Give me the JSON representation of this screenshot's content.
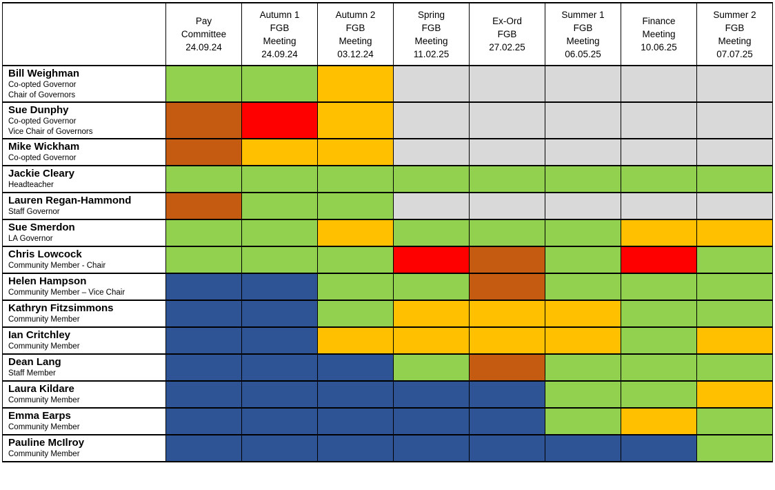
{
  "table": {
    "corner_header": "",
    "meeting_columns": [
      {
        "lines": [
          "Pay",
          "Committee",
          "24.09.24"
        ]
      },
      {
        "lines": [
          "Autumn 1",
          "FGB",
          "Meeting",
          "24.09.24"
        ]
      },
      {
        "lines": [
          "Autumn 2",
          "FGB",
          "Meeting",
          "03.12.24"
        ]
      },
      {
        "lines": [
          "Spring",
          "FGB",
          "Meeting",
          "11.02.25"
        ]
      },
      {
        "lines": [
          "Ex-Ord",
          "FGB",
          "27.02.25"
        ]
      },
      {
        "lines": [
          "Summer 1",
          "FGB",
          "Meeting",
          "06.05.25"
        ]
      },
      {
        "lines": [
          "Finance",
          "Meeting",
          "10.06.25"
        ]
      },
      {
        "lines": [
          "Summer 2",
          "FGB",
          "Meeting",
          "07.07.25"
        ]
      }
    ],
    "status_colors": {
      "green": "#92D050",
      "amber": "#FFC000",
      "red": "#FF0000",
      "brown": "#C55A11",
      "grey": "#D9D9D9",
      "blue": "#2F5496"
    },
    "governors": [
      {
        "name": "Bill Weighman",
        "roles": [
          "Co-opted Governor",
          "Chair of Governors"
        ],
        "attendance": [
          "green",
          "green",
          "amber",
          "grey",
          "grey",
          "grey",
          "grey",
          "grey"
        ]
      },
      {
        "name": "Sue Dunphy",
        "roles": [
          "Co-opted Governor",
          "Vice Chair of Governors"
        ],
        "attendance": [
          "brown",
          "red",
          "amber",
          "grey",
          "grey",
          "grey",
          "grey",
          "grey"
        ]
      },
      {
        "name": "Mike Wickham",
        "roles": [
          "Co-opted Governor"
        ],
        "attendance": [
          "brown",
          "amber",
          "amber",
          "grey",
          "grey",
          "grey",
          "grey",
          "grey"
        ]
      },
      {
        "name": "Jackie Cleary",
        "roles": [
          "Headteacher"
        ],
        "attendance": [
          "green",
          "green",
          "green",
          "green",
          "green",
          "green",
          "green",
          "green"
        ]
      },
      {
        "name": "Lauren Regan-Hammond",
        "roles": [
          "Staff Governor"
        ],
        "attendance": [
          "brown",
          "green",
          "green",
          "grey",
          "grey",
          "grey",
          "grey",
          "grey"
        ]
      },
      {
        "name": "Sue Smerdon",
        "roles": [
          "LA Governor"
        ],
        "attendance": [
          "green",
          "green",
          "amber",
          "green",
          "green",
          "green",
          "amber",
          "amber"
        ]
      },
      {
        "name": "Chris Lowcock",
        "roles": [
          "Community Member - Chair"
        ],
        "attendance": [
          "green",
          "green",
          "green",
          "red",
          "brown",
          "green",
          "red",
          "green"
        ]
      },
      {
        "name": "Helen Hampson",
        "roles": [
          "Community Member – Vice Chair"
        ],
        "attendance": [
          "blue",
          "blue",
          "green",
          "green",
          "brown",
          "green",
          "green",
          "green"
        ]
      },
      {
        "name": "Kathryn Fitzsimmons",
        "roles": [
          "Community Member"
        ],
        "attendance": [
          "blue",
          "blue",
          "green",
          "amber",
          "amber",
          "amber",
          "green",
          "green"
        ]
      },
      {
        "name": "Ian Critchley",
        "roles": [
          "Community Member"
        ],
        "attendance": [
          "blue",
          "blue",
          "amber",
          "amber",
          "amber",
          "amber",
          "green",
          "amber"
        ]
      },
      {
        "name": "Dean Lang",
        "roles": [
          "Staff Member"
        ],
        "attendance": [
          "blue",
          "blue",
          "blue",
          "green",
          "brown",
          "green",
          "green",
          "green"
        ]
      },
      {
        "name": "Laura Kildare",
        "roles": [
          "Community Member"
        ],
        "attendance": [
          "blue",
          "blue",
          "blue",
          "blue",
          "blue",
          "green",
          "green",
          "amber"
        ]
      },
      {
        "name": "Emma Earps",
        "roles": [
          "Community Member"
        ],
        "attendance": [
          "blue",
          "blue",
          "blue",
          "blue",
          "blue",
          "green",
          "amber",
          "green"
        ]
      },
      {
        "name": "Pauline McIlroy",
        "roles": [
          "Community Member"
        ],
        "attendance": [
          "blue",
          "blue",
          "blue",
          "blue",
          "blue",
          "blue",
          "blue",
          "green"
        ]
      }
    ]
  }
}
